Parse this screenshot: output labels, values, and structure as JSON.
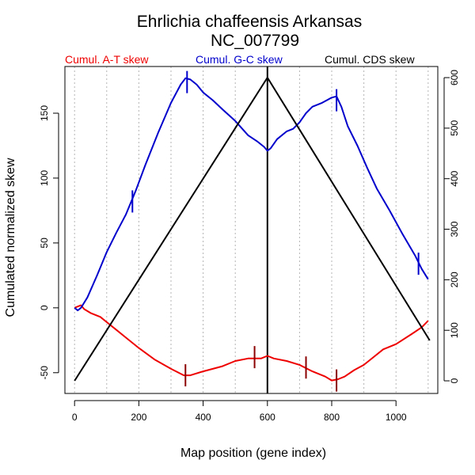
{
  "chart_data": {
    "type": "line",
    "title": "Ehrlichia chaffeensis Arkansas",
    "subtitle": "NC_007799",
    "xlabel": "Map position (gene index)",
    "ylabel": "Cumulated normalized skew",
    "xlim": [
      -30,
      1130
    ],
    "ylim": [
      -66,
      186
    ],
    "y2lim": [
      -25,
      622
    ],
    "xticks": [
      0,
      200,
      400,
      600,
      800,
      1000
    ],
    "yticks": [
      -50,
      0,
      50,
      100,
      150
    ],
    "y2ticks": [
      0,
      100,
      200,
      300,
      400,
      500,
      600
    ],
    "grid": {
      "vertical_dotted_every": 100
    },
    "legend": [
      {
        "label": "Cumul. A-T skew",
        "color": "#ee0000"
      },
      {
        "label": "Cumul. G-C skew",
        "color": "#0000cc"
      },
      {
        "label": "Cumul. CDS skew",
        "color": "#000000"
      }
    ],
    "series": [
      {
        "name": "Cumul. A-T skew",
        "color": "#ee0000",
        "axis": "left",
        "x": [
          0,
          10,
          20,
          30,
          50,
          80,
          100,
          130,
          160,
          200,
          250,
          300,
          340,
          360,
          400,
          430,
          460,
          500,
          540,
          560,
          580,
          600,
          620,
          660,
          700,
          740,
          780,
          800,
          820,
          840,
          870,
          900,
          930,
          960,
          1000,
          1050,
          1080,
          1100
        ],
        "y": [
          0,
          1,
          2,
          -1,
          -4,
          -7,
          -11,
          -17,
          -23,
          -31,
          -40,
          -47,
          -52,
          -52,
          -49,
          -47,
          -45,
          -41,
          -39,
          -39,
          -39,
          -37,
          -39,
          -41,
          -44,
          -49,
          -53,
          -56,
          -55,
          -53,
          -48,
          -44,
          -38,
          -32,
          -28,
          -20,
          -15,
          -10
        ]
      },
      {
        "name": "Cumul. G-C skew",
        "color": "#0000cc",
        "axis": "left",
        "x": [
          0,
          10,
          20,
          40,
          70,
          100,
          130,
          160,
          190,
          220,
          260,
          300,
          330,
          345,
          360,
          380,
          400,
          430,
          460,
          500,
          540,
          570,
          590,
          600,
          610,
          630,
          660,
          680,
          700,
          720,
          740,
          770,
          800,
          815,
          830,
          850,
          880,
          910,
          940,
          980,
          1020,
          1060,
          1080,
          1100
        ],
        "y": [
          0,
          -2,
          0,
          8,
          25,
          43,
          58,
          72,
          90,
          110,
          135,
          158,
          172,
          177,
          176,
          172,
          166,
          160,
          153,
          144,
          133,
          128,
          124,
          121,
          123,
          130,
          136,
          138,
          143,
          150,
          155,
          158,
          162,
          163,
          155,
          140,
          125,
          108,
          92,
          75,
          57,
          40,
          30,
          22
        ]
      },
      {
        "name": "Cumul. CDS skew",
        "color": "#000000",
        "axis": "right",
        "x": [
          0,
          600,
          1105
        ],
        "y": [
          0,
          600,
          80
        ]
      }
    ],
    "markers": {
      "gc": [
        {
          "x": 180,
          "y": 82
        },
        {
          "x": 350,
          "y": 174
        },
        {
          "x": 815,
          "y": 160
        },
        {
          "x": 1070,
          "y": 34
        }
      ],
      "at": [
        {
          "x": 345,
          "y": -52
        },
        {
          "x": 560,
          "y": -38
        },
        {
          "x": 720,
          "y": -46
        },
        {
          "x": 815,
          "y": -56
        }
      ]
    },
    "vertical_line_x": 600
  }
}
